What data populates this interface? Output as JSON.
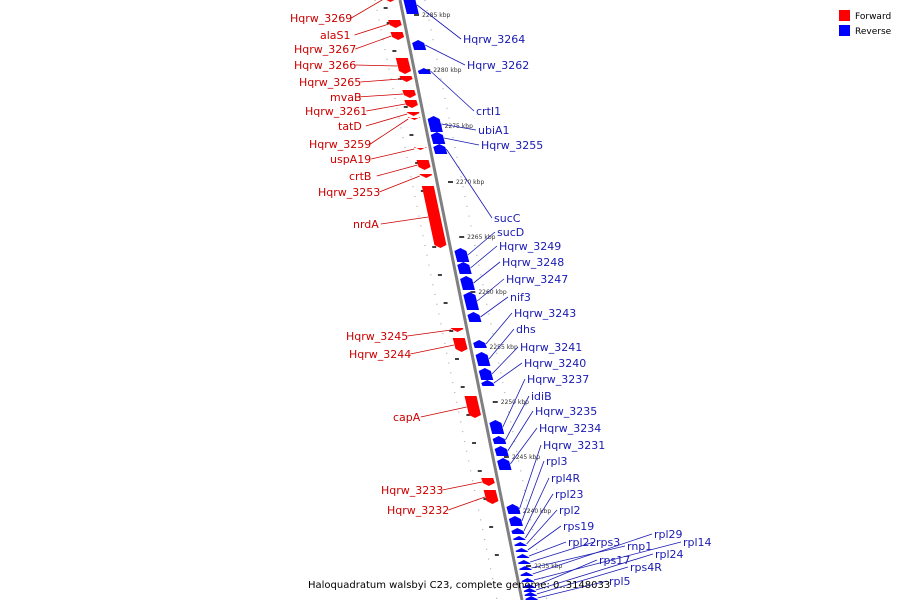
{
  "colors": {
    "forward": "#ff0000",
    "forward_label": "#cc0000",
    "reverse": "#0000ff",
    "reverse_label": "#1a1ab2",
    "backbone": "#808080"
  },
  "legend": [
    {
      "label": "Forward",
      "strand": "forward"
    },
    {
      "label": "Reverse",
      "strand": "reverse"
    }
  ],
  "caption": "Haloquadratum walsbyi C23, complete genome: 0..3148033",
  "tick_labels": [
    "2285 kbp",
    "2280 kbp",
    "2275 kbp",
    "2270 kbp",
    "2265 kbp",
    "2260 kbp",
    "2255 kbp",
    "2250 kbp",
    "2245 kbp",
    "2240 kbp",
    "2235 kbp"
  ],
  "forward_genes": [
    "Hqrw_3269",
    "alaS1",
    "Hqrw_3267",
    "Hqrw_3266",
    "Hqrw_3265",
    "mvaB",
    "Hqrw_3261",
    "tatD",
    "Hqrw_3259",
    "uspA19",
    "crtB",
    "Hqrw_3253",
    "nrdA",
    "Hqrw_3245",
    "Hqrw_3244",
    "capA",
    "Hqrw_3233",
    "Hqrw_3232"
  ],
  "reverse_genes": [
    "Hqrw_3264",
    "Hqrw_3262",
    "crtI1",
    "ubiA1",
    "Hqrw_3255",
    "sucC",
    "sucD",
    "Hqrw_3249",
    "Hqrw_3248",
    "Hqrw_3247",
    "nif3",
    "Hqrw_3243",
    "dhs",
    "Hqrw_3241",
    "Hqrw_3240",
    "Hqrw_3237",
    "idiB",
    "Hqrw_3235",
    "Hqrw_3234",
    "Hqrw_3231",
    "rpl3",
    "rpl4R",
    "rpl23",
    "rpl2",
    "rps19",
    "rpl22",
    "rps3",
    "rnp1",
    "rpl29",
    "rpl14",
    "rps17",
    "rpl24",
    "rps4R",
    "rpl5"
  ]
}
